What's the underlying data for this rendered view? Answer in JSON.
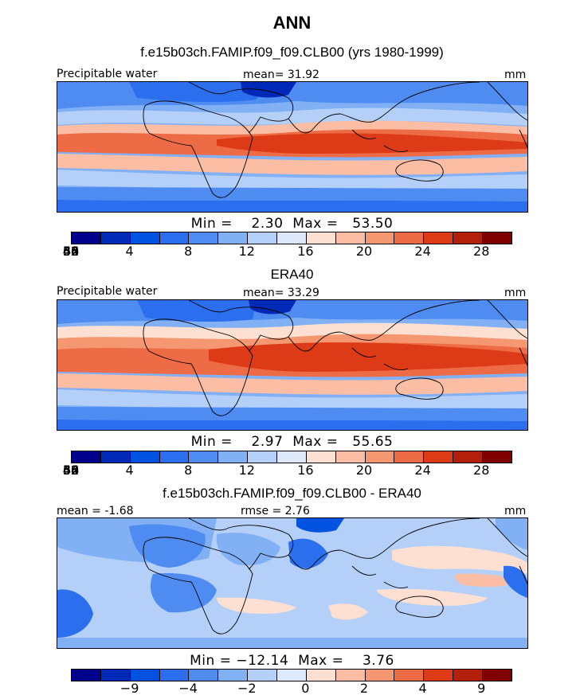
{
  "title": "ANN",
  "panels": [
    {
      "heading": "f.e15b03ch.FAMIP.f09_f09.CLB00 (yrs 1980-1999)",
      "left_label": "Precipitable water",
      "center_label": "mean=   31.92",
      "right_label": "mm",
      "minmax": "Min =    2.30  Max =   53.50",
      "levels": [
        "4",
        "8",
        "12",
        "16",
        "20",
        "24",
        "28",
        "32",
        "36",
        "40",
        "44",
        "48",
        "52",
        "56",
        "60"
      ]
    },
    {
      "heading": "ERA40",
      "left_label": "Precipitable water",
      "center_label": "mean=   33.29",
      "right_label": "mm",
      "minmax": "Min =    2.97  Max =   55.65",
      "levels": [
        "4",
        "8",
        "12",
        "16",
        "20",
        "24",
        "28",
        "32",
        "36",
        "40",
        "44",
        "48",
        "52",
        "56",
        "60"
      ]
    },
    {
      "heading": "f.e15b03ch.FAMIP.f09_f09.CLB00 - ERA40",
      "left_label": "mean =  -1.68",
      "center_label": "rmse =    2.76",
      "right_label": "mm",
      "minmax": "Min = −12.14  Max =    3.76",
      "levels": [
        "−9",
        "−4",
        "−2",
        "0",
        "2",
        "4",
        "9"
      ]
    }
  ],
  "colorbar_colors": [
    "#00008b",
    "#0029b8",
    "#0052e0",
    "#2b6fef",
    "#4f8cf2",
    "#82b0f5",
    "#b4d0f8",
    "#dde9fa",
    "#fde0d2",
    "#fbbea5",
    "#f59771",
    "#ee6c45",
    "#dd3a18",
    "#b3200a",
    "#7f0000"
  ]
}
